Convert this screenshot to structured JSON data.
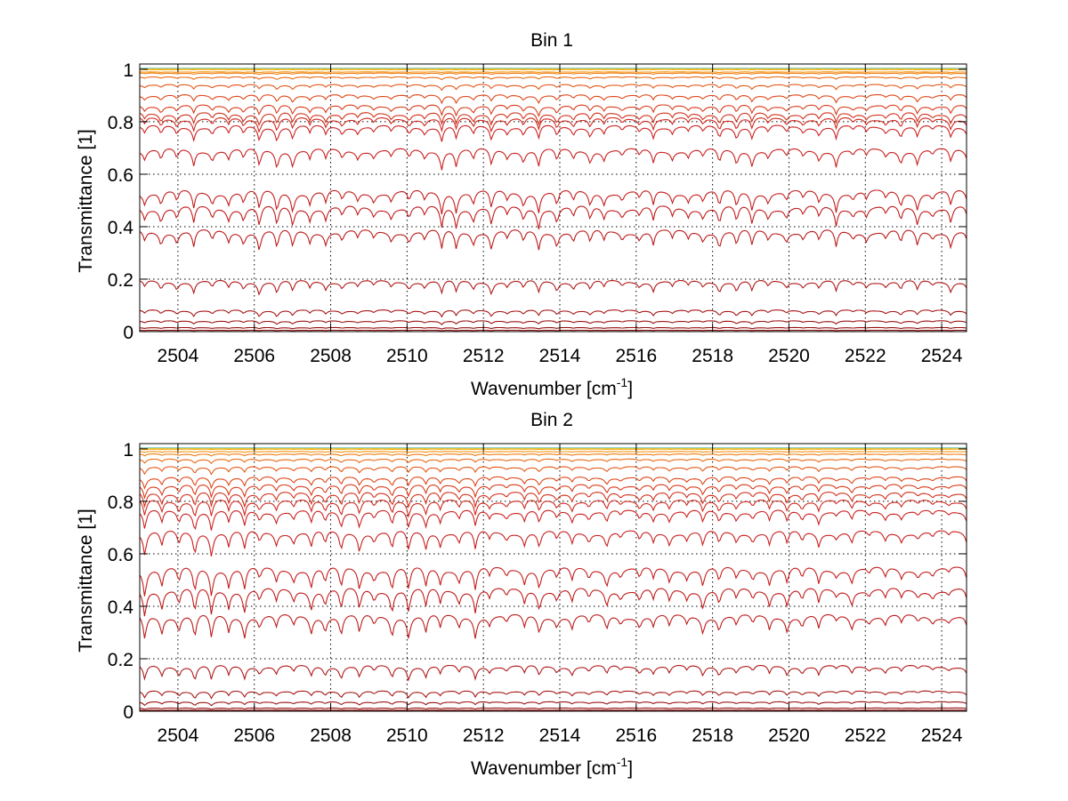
{
  "chart_data": [
    {
      "type": "line",
      "title": "Bin 1",
      "xlabel": "Wavenumber [cm",
      "xlabel_sup": "-1",
      "xlabel_suffix": "]",
      "ylabel": "Transmittance [1]",
      "xlim": [
        2503.0,
        2524.65
      ],
      "ylim": [
        0,
        1.02
      ],
      "xticks": [
        2504,
        2506,
        2508,
        2510,
        2512,
        2514,
        2516,
        2518,
        2520,
        2522,
        2524
      ],
      "xtick_labels": [
        "2504",
        "2506",
        "2508",
        "2510",
        "2512",
        "2514",
        "2516",
        "2518",
        "2520",
        "2522",
        "2524"
      ],
      "yticks": [
        0,
        0.2,
        0.4,
        0.6,
        0.8,
        1
      ],
      "ytick_labels": [
        "0",
        "0.2",
        "0.4",
        "0.6",
        "0.8",
        "1"
      ],
      "grid": true,
      "line_spacing_cm1": 0.43,
      "series_baselines": [
        0.0,
        0.005,
        0.015,
        0.04,
        0.08,
        0.19,
        0.38,
        0.47,
        0.53,
        0.69,
        0.78,
        0.81,
        0.83,
        0.86,
        0.9,
        0.94,
        0.97,
        0.985,
        0.99,
        0.995,
        0.998,
        1.0
      ],
      "series_colors": [
        "#8b0000",
        "#8b0a0a",
        "#941010",
        "#9c1414",
        "#a61818",
        "#b01a1a",
        "#bb1c1c",
        "#c01c1c",
        "#c41e1e",
        "#c82020",
        "#cc2222",
        "#cf2a20",
        "#d2321e",
        "#d83c1c",
        "#de481a",
        "#e45818",
        "#ea6a14",
        "#f07c10",
        "#f4900c",
        "#f8a80a",
        "#fcc810",
        "#7ec8c0"
      ],
      "dip_depth_scale": 0.085,
      "dip_fade_toward_high_wavenumber": 0.35
    },
    {
      "type": "line",
      "title": "Bin 2",
      "xlabel": "Wavenumber [cm",
      "xlabel_sup": "-1",
      "xlabel_suffix": "]",
      "ylabel": "Transmittance [1]",
      "xlim": [
        2503.0,
        2524.65
      ],
      "ylim": [
        0,
        1.02
      ],
      "xticks": [
        2504,
        2506,
        2508,
        2510,
        2512,
        2514,
        2516,
        2518,
        2520,
        2522,
        2524
      ],
      "xtick_labels": [
        "2504",
        "2506",
        "2508",
        "2510",
        "2512",
        "2514",
        "2516",
        "2518",
        "2520",
        "2522",
        "2524"
      ],
      "yticks": [
        0,
        0.2,
        0.4,
        0.6,
        0.8,
        1
      ],
      "ytick_labels": [
        "0",
        "0.2",
        "0.4",
        "0.6",
        "0.8",
        "1"
      ],
      "grid": true,
      "line_spacing_cm1": 0.43,
      "series_baselines": [
        0.0,
        0.004,
        0.012,
        0.035,
        0.075,
        0.17,
        0.36,
        0.46,
        0.54,
        0.68,
        0.76,
        0.8,
        0.83,
        0.86,
        0.89,
        0.93,
        0.96,
        0.98,
        0.99,
        0.995,
        0.998,
        1.0
      ],
      "series_colors": [
        "#8b0000",
        "#8b0a0a",
        "#941010",
        "#9c1414",
        "#a61818",
        "#b01a1a",
        "#bb1c1c",
        "#c01c1c",
        "#c41e1e",
        "#c82020",
        "#cc2222",
        "#cf2a20",
        "#d2321e",
        "#d83c1c",
        "#de481a",
        "#e45818",
        "#ea6a14",
        "#f07c10",
        "#f4900c",
        "#f8a80a",
        "#fcc810",
        "#7ec8c0"
      ],
      "dip_depth_scale": 0.095,
      "dip_fade_toward_high_wavenumber": 0.55
    }
  ]
}
